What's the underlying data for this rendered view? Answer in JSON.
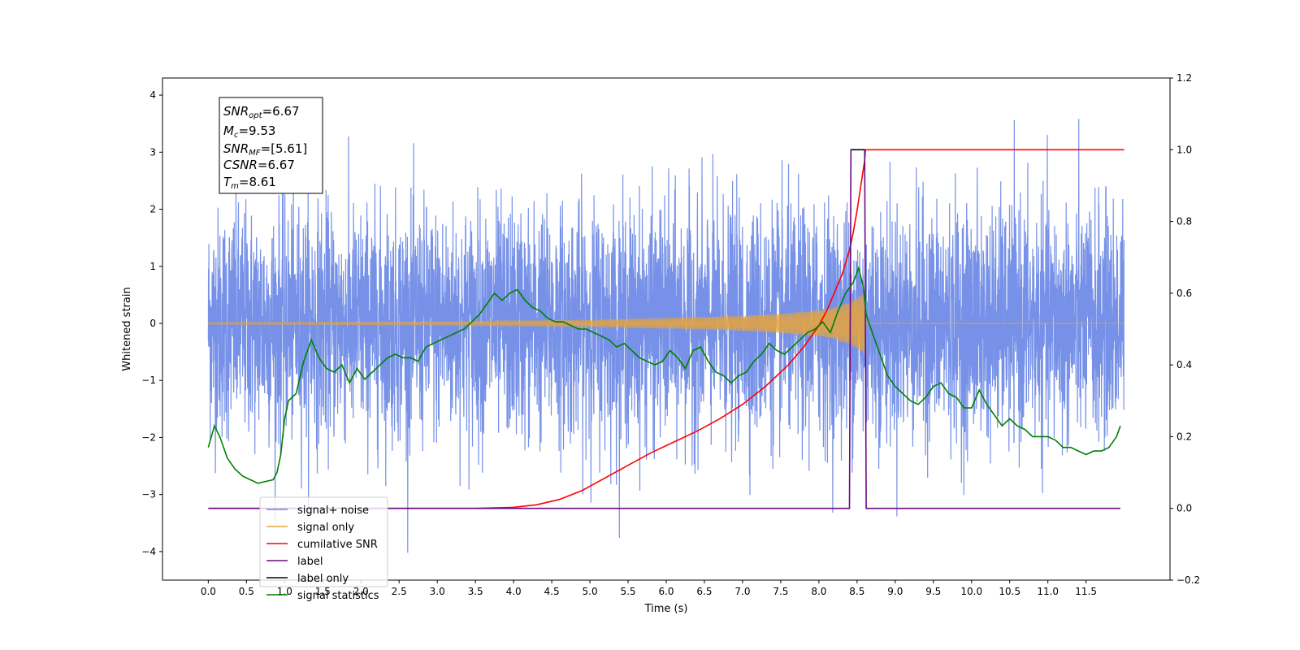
{
  "chart_data": {
    "type": "line",
    "xlabel": "Time (s)",
    "ylabel": "Whitened strain",
    "xlim": [
      -0.6,
      12.6
    ],
    "ylim": [
      -4.5,
      4.3
    ],
    "y2lim": [
      -0.2,
      1.2
    ],
    "x_ticks": [
      "0.0",
      "0.5",
      "1.0",
      "1.5",
      "2.0",
      "2.5",
      "3.0",
      "3.5",
      "4.0",
      "4.5",
      "5.0",
      "5.5",
      "6.0",
      "6.5",
      "7.0",
      "7.5",
      "8.0",
      "8.5",
      "9.0",
      "9.5",
      "10.0",
      "10.5",
      "11.0",
      "11.5"
    ],
    "y_ticks": [
      "4",
      "3",
      "2",
      "1",
      "0",
      "−1",
      "−2",
      "−3",
      "−4"
    ],
    "y2_ticks": [
      "1.2",
      "1.0",
      "0.8",
      "0.6",
      "0.4",
      "0.2",
      "0.0",
      "−0.2"
    ],
    "grid": false,
    "legend_position": "lower-left",
    "stats_box": {
      "snr_opt": "=6.67",
      "mc": "=9.53",
      "snr_mf": "=[5.61]",
      "csnr": "=6.67",
      "tm": "=8.61"
    },
    "series": [
      {
        "name": "signal+ noise",
        "axis": "left",
        "color": "#6f8be6",
        "description_values": {
          "x_range": [
            0.0,
            12.0
          ],
          "mean": 0.0,
          "std": 1.0,
          "min": -4.1,
          "max": 3.9
        }
      },
      {
        "name": "signal only",
        "axis": "left",
        "color": "#e7a33a",
        "envelope": {
          "x": [
            0.0,
            3.0,
            5.0,
            6.0,
            7.0,
            7.5,
            8.0,
            8.2,
            8.4,
            8.5,
            8.6,
            8.62,
            12.0
          ],
          "y": [
            0.02,
            0.03,
            0.06,
            0.09,
            0.13,
            0.17,
            0.23,
            0.28,
            0.37,
            0.45,
            0.55,
            0.0,
            0.0
          ]
        }
      },
      {
        "name": "cumilative SNR",
        "axis": "right",
        "color": "#ff0000",
        "x": [
          0.0,
          3.5,
          4.0,
          4.3,
          4.6,
          4.9,
          5.2,
          5.5,
          5.8,
          6.1,
          6.4,
          6.7,
          7.0,
          7.3,
          7.6,
          7.8,
          8.0,
          8.1,
          8.2,
          8.3,
          8.4,
          8.45,
          8.5,
          8.55,
          8.6,
          8.61,
          12.0
        ],
        "y": [
          0.0,
          0.0,
          0.003,
          0.01,
          0.025,
          0.05,
          0.085,
          0.12,
          0.155,
          0.185,
          0.215,
          0.25,
          0.29,
          0.34,
          0.4,
          0.45,
          0.51,
          0.55,
          0.6,
          0.65,
          0.72,
          0.77,
          0.83,
          0.9,
          0.97,
          1.0,
          1.0
        ]
      },
      {
        "name": "label",
        "axis": "right",
        "color": "#6a0a86",
        "x": [
          0.0,
          8.4,
          8.42,
          8.6,
          8.62,
          11.95
        ],
        "y": [
          0.0,
          0.0,
          1.0,
          1.0,
          0.0,
          0.0
        ]
      },
      {
        "name": "label only",
        "axis": "right",
        "color": "#000000",
        "x": [
          8.42,
          8.6
        ],
        "y": [
          1.0,
          1.0
        ]
      },
      {
        "name": "signal statistics",
        "axis": "right",
        "color": "#008000",
        "x": [
          0.0,
          0.08,
          0.15,
          0.25,
          0.35,
          0.45,
          0.55,
          0.65,
          0.75,
          0.85,
          0.9,
          0.95,
          1.0,
          1.05,
          1.15,
          1.25,
          1.35,
          1.45,
          1.55,
          1.65,
          1.75,
          1.85,
          1.95,
          2.05,
          2.15,
          2.25,
          2.35,
          2.45,
          2.55,
          2.65,
          2.75,
          2.85,
          2.95,
          3.05,
          3.15,
          3.25,
          3.35,
          3.45,
          3.55,
          3.65,
          3.75,
          3.85,
          3.95,
          4.05,
          4.15,
          4.25,
          4.35,
          4.45,
          4.55,
          4.65,
          4.75,
          4.85,
          4.95,
          5.05,
          5.15,
          5.25,
          5.35,
          5.45,
          5.55,
          5.65,
          5.75,
          5.85,
          5.95,
          6.05,
          6.15,
          6.25,
          6.35,
          6.45,
          6.55,
          6.65,
          6.75,
          6.85,
          6.95,
          7.05,
          7.15,
          7.25,
          7.35,
          7.45,
          7.55,
          7.65,
          7.75,
          7.85,
          7.95,
          8.05,
          8.15,
          8.25,
          8.35,
          8.45,
          8.52,
          8.58,
          8.62,
          8.7,
          8.8,
          8.9,
          9.0,
          9.1,
          9.2,
          9.3,
          9.4,
          9.5,
          9.6,
          9.7,
          9.8,
          9.9,
          10.0,
          10.1,
          10.2,
          10.3,
          10.4,
          10.5,
          10.6,
          10.7,
          10.8,
          10.9,
          11.0,
          11.1,
          11.2,
          11.3,
          11.4,
          11.5,
          11.6,
          11.7,
          11.8,
          11.9,
          11.95
        ],
        "y": [
          0.17,
          0.23,
          0.2,
          0.14,
          0.11,
          0.09,
          0.08,
          0.07,
          0.075,
          0.08,
          0.1,
          0.15,
          0.25,
          0.3,
          0.32,
          0.41,
          0.47,
          0.42,
          0.39,
          0.38,
          0.4,
          0.35,
          0.39,
          0.36,
          0.38,
          0.4,
          0.42,
          0.43,
          0.42,
          0.42,
          0.41,
          0.45,
          0.46,
          0.47,
          0.48,
          0.49,
          0.5,
          0.52,
          0.54,
          0.57,
          0.6,
          0.58,
          0.6,
          0.61,
          0.58,
          0.56,
          0.55,
          0.53,
          0.52,
          0.52,
          0.51,
          0.5,
          0.5,
          0.49,
          0.48,
          0.47,
          0.45,
          0.46,
          0.44,
          0.42,
          0.41,
          0.4,
          0.41,
          0.44,
          0.42,
          0.39,
          0.44,
          0.45,
          0.41,
          0.38,
          0.37,
          0.35,
          0.37,
          0.38,
          0.41,
          0.43,
          0.46,
          0.44,
          0.43,
          0.45,
          0.47,
          0.49,
          0.5,
          0.52,
          0.49,
          0.55,
          0.6,
          0.63,
          0.67,
          0.62,
          0.54,
          0.49,
          0.43,
          0.37,
          0.34,
          0.32,
          0.3,
          0.29,
          0.31,
          0.34,
          0.35,
          0.32,
          0.31,
          0.28,
          0.28,
          0.33,
          0.29,
          0.26,
          0.23,
          0.25,
          0.23,
          0.22,
          0.2,
          0.2,
          0.2,
          0.19,
          0.17,
          0.17,
          0.16,
          0.15,
          0.16,
          0.16,
          0.17,
          0.2,
          0.23
        ]
      }
    ]
  }
}
